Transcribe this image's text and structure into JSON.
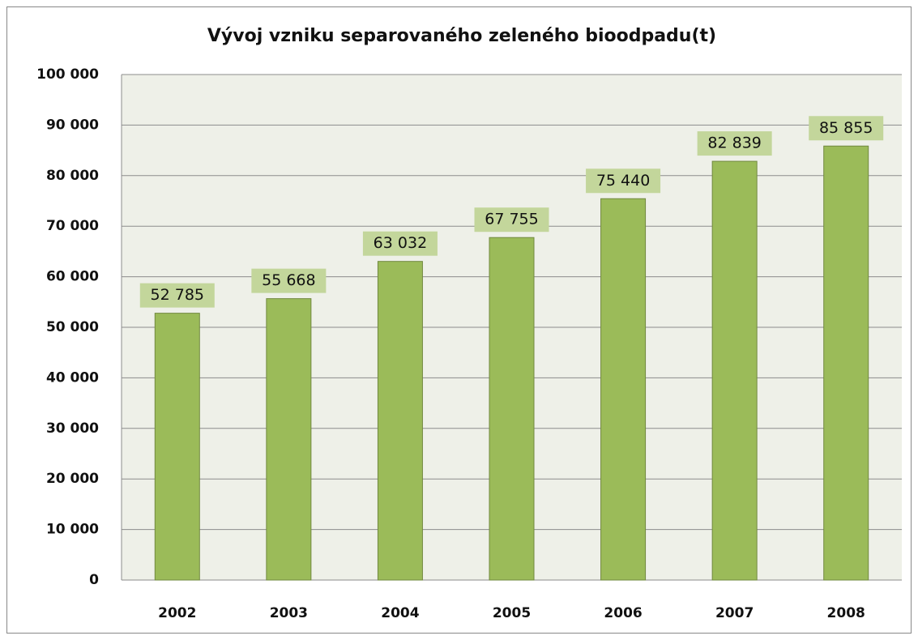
{
  "chart_data": {
    "type": "bar",
    "title": "Vývoj vzniku separovaného zeleného bioodpadu(t)",
    "categories": [
      "2002",
      "2003",
      "2004",
      "2005",
      "2006",
      "2007",
      "2008"
    ],
    "values": [
      52785,
      55668,
      63032,
      67755,
      75440,
      82839,
      85855
    ],
    "value_labels": [
      "52 785",
      "55 668",
      "63 032",
      "67 755",
      "75 440",
      "82 839",
      "85 855"
    ],
    "color": "#9bbb59",
    "ylim": [
      0,
      100000
    ],
    "yticks": [
      0,
      {
        "value": 10000,
        "label": "10 000"
      },
      {
        "value": 20000,
        "label": "20 000"
      },
      {
        "value": 30000,
        "label": "30 000"
      },
      {
        "value": 40000,
        "label": "40 000"
      },
      {
        "value": 50000,
        "label": "50 000"
      },
      {
        "value": 60000,
        "label": "60 000"
      },
      {
        "value": 70000,
        "label": "70 000"
      },
      {
        "value": 80000,
        "label": "80 000"
      },
      {
        "value": 90000,
        "label": "90 000"
      },
      {
        "value": 100000,
        "label": "100 000"
      }
    ],
    "grid": true
  }
}
